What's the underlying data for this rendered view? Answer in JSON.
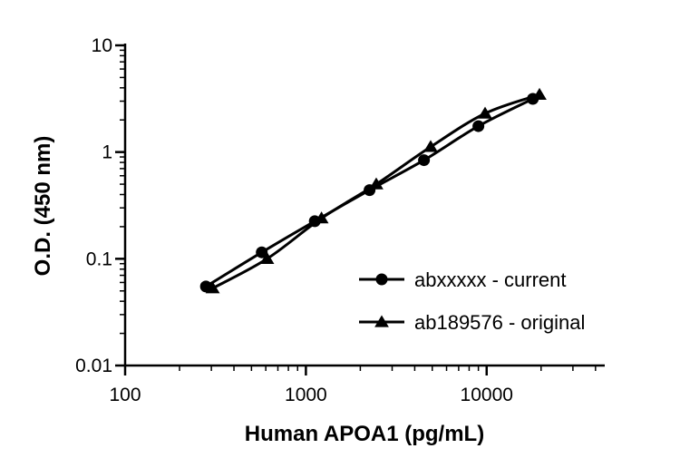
{
  "chart_data": {
    "type": "line",
    "xlabel": "Human APOA1 (pg/mL)",
    "ylabel": "O.D. (450 nm)",
    "xscale": "log",
    "yscale": "log",
    "xlim": [
      100,
      45000
    ],
    "ylim": [
      0.01,
      10
    ],
    "x_ticks": [
      100,
      1000,
      10000
    ],
    "x_tick_labels": [
      "100",
      "1000",
      "10000"
    ],
    "y_ticks": [
      0.01,
      0.1,
      1,
      10
    ],
    "y_tick_labels": [
      "0.01",
      "0.1",
      "1",
      "10"
    ],
    "grid": false,
    "legend_position": "lower-right",
    "series": [
      {
        "name": "abxxxxx - current",
        "marker": "circle",
        "color": "#000000",
        "x": [
          280,
          570,
          1120,
          2250,
          4500,
          9000,
          18000
        ],
        "y": [
          0.055,
          0.115,
          0.225,
          0.44,
          0.84,
          1.75,
          3.15
        ]
      },
      {
        "name": "ab189576 - original",
        "marker": "triangle",
        "color": "#000000",
        "x": [
          305,
          610,
          1220,
          2450,
          4900,
          9800,
          19600
        ],
        "y": [
          0.053,
          0.1,
          0.24,
          0.5,
          1.12,
          2.3,
          3.45
        ]
      }
    ]
  }
}
